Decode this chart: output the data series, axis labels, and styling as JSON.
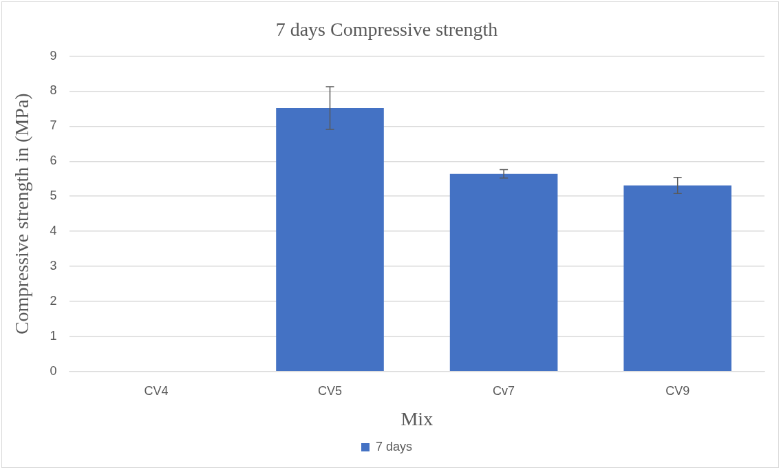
{
  "chart_data": {
    "type": "bar",
    "title": "7 days Compressive strength",
    "xlabel": "Mix",
    "ylabel": "Compressive strength in (MPa)",
    "categories": [
      "CV4",
      "CV5",
      "Cv7",
      "CV9"
    ],
    "series": [
      {
        "name": "7 days",
        "color": "#4472c4",
        "values": [
          0,
          7.52,
          5.64,
          5.31
        ],
        "errors": [
          null,
          0.61,
          0.12,
          0.23
        ]
      }
    ],
    "ylim": [
      0,
      9
    ],
    "yticks": [
      0,
      1,
      2,
      3,
      4,
      5,
      6,
      7,
      8,
      9
    ],
    "grid": "y",
    "legend": "bottom"
  }
}
